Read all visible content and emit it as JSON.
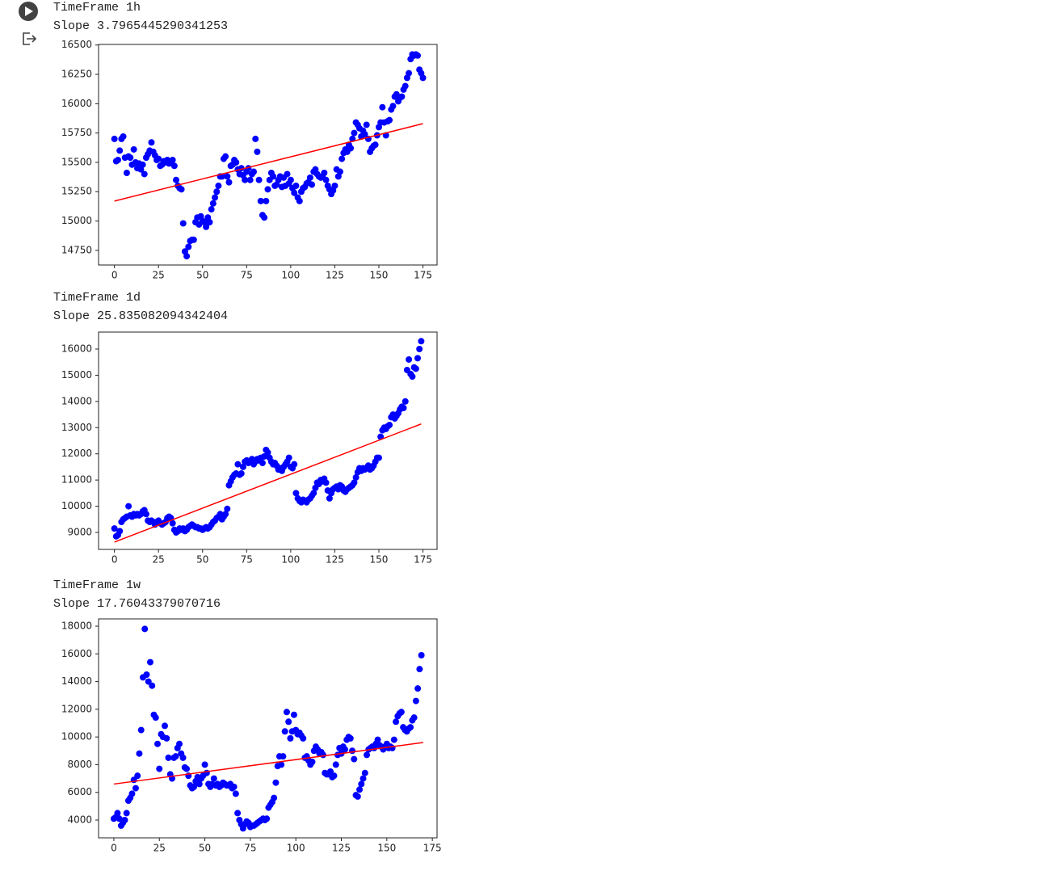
{
  "chart_data": [
    {
      "type": "scatter",
      "title": "TimeFrame 1h",
      "subtitle": "Slope 3.7965445290341253",
      "xlim": [
        -9,
        183
      ],
      "ylim": [
        14625,
        16505
      ],
      "xticks": [
        0,
        25,
        50,
        75,
        100,
        125,
        150,
        175
      ],
      "yticks": [
        14750,
        15000,
        15250,
        15500,
        15750,
        16000,
        16250,
        16500
      ],
      "x": [
        0,
        1,
        2,
        3,
        4,
        5,
        6,
        7,
        8,
        9,
        10,
        11,
        12,
        13,
        14,
        15,
        16,
        17,
        18,
        19,
        20,
        21,
        22,
        23,
        24,
        25,
        26,
        27,
        28,
        29,
        30,
        31,
        32,
        33,
        34,
        35,
        36,
        37,
        38,
        39,
        40,
        41,
        42,
        43,
        44,
        45,
        46,
        47,
        48,
        49,
        50,
        51,
        52,
        53,
        54,
        55,
        56,
        57,
        58,
        59,
        60,
        61,
        62,
        63,
        64,
        65,
        66,
        67,
        68,
        69,
        70,
        71,
        72,
        73,
        74,
        75,
        76,
        77,
        78,
        79,
        80,
        81,
        82,
        83,
        84,
        85,
        86,
        87,
        88,
        89,
        90,
        91,
        92,
        93,
        94,
        95,
        96,
        97,
        98,
        99,
        100,
        101,
        102,
        103,
        104,
        105,
        106,
        107,
        108,
        109,
        110,
        111,
        112,
        113,
        114,
        115,
        116,
        117,
        118,
        119,
        120,
        121,
        122,
        123,
        124,
        125,
        126,
        127,
        128,
        129,
        130,
        131,
        132,
        133,
        134,
        135,
        136,
        137,
        138,
        139,
        140,
        141,
        142,
        143,
        144,
        145,
        146,
        147,
        148,
        149,
        150,
        151,
        152,
        153,
        154,
        155,
        156,
        157,
        158,
        159,
        160,
        161,
        162,
        163,
        164,
        165,
        166,
        167,
        168,
        169,
        170,
        171,
        172,
        173,
        174,
        175
      ],
      "series": [
        {
          "color": "#0000ff",
          "values": [
            15700,
            15510,
            15520,
            15600,
            15700,
            15720,
            15540,
            15410,
            15550,
            15540,
            15480,
            15610,
            15500,
            15450,
            15490,
            15440,
            15480,
            15400,
            15540,
            15570,
            15600,
            15670,
            15590,
            15560,
            15520,
            15530,
            15470,
            15480,
            15510,
            15500,
            15520,
            15490,
            15510,
            15520,
            15470,
            15350,
            15300,
            15280,
            15270,
            14980,
            14740,
            14700,
            14780,
            14830,
            14840,
            14840,
            14990,
            15030,
            14970,
            15040,
            15000,
            14990,
            14950,
            15030,
            14990,
            15100,
            15150,
            15200,
            15250,
            15300,
            15380,
            15380,
            15530,
            15550,
            15380,
            15330,
            15470,
            15480,
            15520,
            15500,
            15440,
            15400,
            15450,
            15390,
            15350,
            15420,
            15450,
            15350,
            15400,
            15420,
            15700,
            15590,
            15350,
            15170,
            15050,
            15030,
            15170,
            15270,
            15350,
            15410,
            15380,
            15300,
            15310,
            15350,
            15380,
            15290,
            15370,
            15300,
            15400,
            15320,
            15350,
            15280,
            15240,
            15300,
            15200,
            15170,
            15250,
            15280,
            15290,
            15320,
            15330,
            15370,
            15310,
            15420,
            15440,
            15400,
            15380,
            15370,
            15380,
            15410,
            15350,
            15300,
            15270,
            15230,
            15260,
            15300,
            15440,
            15380,
            15420,
            15530,
            15580,
            15610,
            15590,
            15650,
            15620,
            15700,
            15750,
            15840,
            15820,
            15790,
            15720,
            15770,
            15740,
            15820,
            15700,
            15590,
            15620,
            15640,
            15650,
            15730,
            15800,
            15840,
            15970,
            15840,
            15730,
            15850,
            15860,
            15950,
            15980,
            16060,
            16080,
            16020,
            16050,
            16060,
            16120,
            16150,
            16220,
            16260,
            16380,
            16420,
            16410,
            16420,
            16410,
            16290,
            16260,
            16220
          ]
        },
        {
          "type": "line",
          "color": "#ff0000",
          "x": [
            0,
            175
          ],
          "values": [
            15170,
            15830
          ]
        }
      ]
    },
    {
      "type": "scatter",
      "title": "TimeFrame 1d",
      "subtitle": "Slope 25.835082094342404",
      "xlim": [
        -9,
        183
      ],
      "ylim": [
        8352,
        16648
      ],
      "xticks": [
        0,
        25,
        50,
        75,
        100,
        125,
        150,
        175
      ],
      "yticks": [
        9000,
        10000,
        11000,
        12000,
        13000,
        14000,
        15000,
        16000
      ],
      "x": [
        0,
        1,
        2,
        3,
        4,
        5,
        6,
        7,
        8,
        9,
        10,
        11,
        12,
        13,
        14,
        15,
        16,
        17,
        18,
        19,
        20,
        21,
        22,
        23,
        24,
        25,
        26,
        27,
        28,
        29,
        30,
        31,
        32,
        33,
        34,
        35,
        36,
        37,
        38,
        39,
        40,
        41,
        42,
        43,
        44,
        45,
        46,
        47,
        48,
        49,
        50,
        51,
        52,
        53,
        54,
        55,
        56,
        57,
        58,
        59,
        60,
        61,
        62,
        63,
        64,
        65,
        66,
        67,
        68,
        69,
        70,
        71,
        72,
        73,
        74,
        75,
        76,
        77,
        78,
        79,
        80,
        81,
        82,
        83,
        84,
        85,
        86,
        87,
        88,
        89,
        90,
        91,
        92,
        93,
        94,
        95,
        96,
        97,
        98,
        99,
        100,
        101,
        102,
        103,
        104,
        105,
        106,
        107,
        108,
        109,
        110,
        111,
        112,
        113,
        114,
        115,
        116,
        117,
        118,
        119,
        120,
        121,
        122,
        123,
        124,
        125,
        126,
        127,
        128,
        129,
        130,
        131,
        132,
        133,
        134,
        135,
        136,
        137,
        138,
        139,
        140,
        141,
        142,
        143,
        144,
        145,
        146,
        147,
        148,
        149,
        150,
        151,
        152,
        153,
        154,
        155,
        156,
        157,
        158,
        159,
        160,
        161,
        162,
        163,
        164,
        165,
        166,
        167,
        168,
        169,
        170,
        171,
        172,
        173,
        174
      ],
      "series": [
        {
          "color": "#0000ff",
          "values": [
            9150,
            8850,
            8900,
            9050,
            9400,
            9500,
            9550,
            9600,
            10000,
            9650,
            9600,
            9700,
            9650,
            9700,
            9650,
            9700,
            9800,
            9850,
            9700,
            9450,
            9400,
            9450,
            9400,
            9300,
            9400,
            9450,
            9350,
            9300,
            9350,
            9400,
            9550,
            9600,
            9550,
            9350,
            9100,
            9000,
            9050,
            9150,
            9100,
            9150,
            9050,
            9100,
            9200,
            9250,
            9300,
            9250,
            9200,
            9200,
            9150,
            9150,
            9100,
            9150,
            9200,
            9150,
            9200,
            9300,
            9400,
            9450,
            9550,
            9600,
            9700,
            9500,
            9600,
            9700,
            9900,
            10800,
            10950,
            11100,
            11200,
            11250,
            11600,
            11200,
            11250,
            11500,
            11700,
            11750,
            11650,
            11700,
            11800,
            11600,
            11700,
            11800,
            11750,
            11850,
            11650,
            11900,
            12150,
            12050,
            11850,
            11700,
            11600,
            11650,
            11550,
            11400,
            11450,
            11350,
            11500,
            11600,
            11700,
            11850,
            11500,
            11450,
            11600,
            10500,
            10300,
            10200,
            10150,
            10250,
            10200,
            10150,
            10250,
            10300,
            10400,
            10500,
            10700,
            10900,
            10850,
            11000,
            10950,
            11050,
            10900,
            10600,
            10300,
            10500,
            10650,
            10700,
            10750,
            10650,
            10800,
            10750,
            10600,
            10550,
            10650,
            10700,
            10750,
            10800,
            10900,
            11100,
            11300,
            11450,
            11350,
            11450,
            11400,
            11450,
            11550,
            11400,
            11450,
            11550,
            11700,
            11850,
            11850,
            12650,
            12900,
            13000,
            12950,
            13050,
            13100,
            13400,
            13500,
            13350,
            13450,
            13550,
            13700,
            13800,
            13750,
            14000,
            15200,
            15600,
            15050,
            14950,
            15300,
            15250,
            15650,
            16000,
            16300
          ]
        },
        {
          "type": "line",
          "color": "#ff0000",
          "x": [
            0,
            174
          ],
          "values": [
            8630,
            13140
          ]
        }
      ]
    },
    {
      "type": "scatter",
      "title": "TimeFrame 1w",
      "subtitle": "Slope 17.76043379070716",
      "xlim": [
        -8.4,
        177.6
      ],
      "ylim": [
        2717,
        18525
      ],
      "xticks": [
        0,
        25,
        50,
        75,
        100,
        125,
        150,
        175
      ],
      "yticks": [
        4000,
        6000,
        8000,
        10000,
        12000,
        14000,
        16000,
        18000
      ],
      "x": [
        0,
        1,
        2,
        3,
        4,
        5,
        6,
        7,
        8,
        9,
        10,
        11,
        12,
        13,
        14,
        15,
        16,
        17,
        18,
        19,
        20,
        21,
        22,
        23,
        24,
        25,
        26,
        27,
        28,
        29,
        30,
        31,
        32,
        33,
        34,
        35,
        36,
        37,
        38,
        39,
        40,
        41,
        42,
        43,
        44,
        45,
        46,
        47,
        48,
        49,
        50,
        51,
        52,
        53,
        54,
        55,
        56,
        57,
        58,
        59,
        60,
        61,
        62,
        63,
        64,
        65,
        66,
        67,
        68,
        69,
        70,
        71,
        72,
        73,
        74,
        75,
        76,
        77,
        78,
        79,
        80,
        81,
        82,
        83,
        84,
        85,
        86,
        87,
        88,
        89,
        90,
        91,
        92,
        93,
        94,
        95,
        96,
        97,
        98,
        99,
        100,
        101,
        102,
        103,
        104,
        105,
        106,
        107,
        108,
        109,
        110,
        111,
        112,
        113,
        114,
        115,
        116,
        117,
        118,
        119,
        120,
        121,
        122,
        123,
        124,
        125,
        126,
        127,
        128,
        129,
        130,
        131,
        132,
        133,
        134,
        135,
        136,
        137,
        138,
        139,
        140,
        141,
        142,
        143,
        144,
        145,
        146,
        147,
        148,
        149,
        150,
        151,
        152,
        153,
        154,
        155,
        156,
        157,
        158,
        159,
        160,
        161,
        162,
        163,
        164,
        165,
        166,
        167,
        168,
        169
      ],
      "series": [
        {
          "color": "#0000ff",
          "values": [
            4100,
            4200,
            4500,
            4100,
            3600,
            3800,
            4000,
            4500,
            5400,
            5600,
            5900,
            6900,
            6300,
            7200,
            8800,
            10500,
            14300,
            17800,
            14500,
            14000,
            15400,
            13700,
            11600,
            11400,
            9500,
            7700,
            10200,
            10000,
            10800,
            9900,
            8500,
            7300,
            7000,
            8500,
            8600,
            9200,
            9500,
            8800,
            8500,
            7800,
            7700,
            7200,
            6500,
            6300,
            6400,
            6800,
            7100,
            6600,
            7000,
            7200,
            8000,
            7400,
            6600,
            6400,
            6600,
            7000,
            6500,
            6600,
            6400,
            6500,
            6700,
            6600,
            6500,
            6500,
            6600,
            6300,
            6400,
            5900,
            4500,
            4000,
            3700,
            3400,
            3700,
            3900,
            3800,
            3500,
            3600,
            3600,
            3700,
            3800,
            3900,
            4000,
            4100,
            4000,
            4100,
            4900,
            5100,
            5300,
            5600,
            6700,
            7900,
            8600,
            8000,
            8600,
            10400,
            11800,
            11100,
            9900,
            10400,
            11600,
            10500,
            10200,
            10300,
            10100,
            9900,
            8500,
            8600,
            8300,
            8000,
            8200,
            9000,
            9300,
            9100,
            8800,
            8900,
            8700,
            7400,
            7300,
            7300,
            7500,
            7100,
            7200,
            8000,
            8700,
            9200,
            8800,
            9300,
            9100,
            9800,
            10000,
            9900,
            9000,
            8400,
            5800,
            5700,
            6200,
            6600,
            7000,
            7400,
            8700,
            9100,
            9200,
            9300,
            9200,
            9500,
            9800,
            9400,
            9300,
            9100,
            9300,
            9500,
            9200,
            9300,
            9200,
            9800,
            11100,
            11500,
            11700,
            11800,
            10700,
            10500,
            10400,
            10600,
            10700,
            11200,
            11400,
            12600,
            13500,
            14900,
            15900
          ]
        },
        {
          "type": "line",
          "color": "#ff0000",
          "x": [
            0,
            170
          ],
          "values": [
            6600,
            9600
          ]
        }
      ]
    }
  ]
}
